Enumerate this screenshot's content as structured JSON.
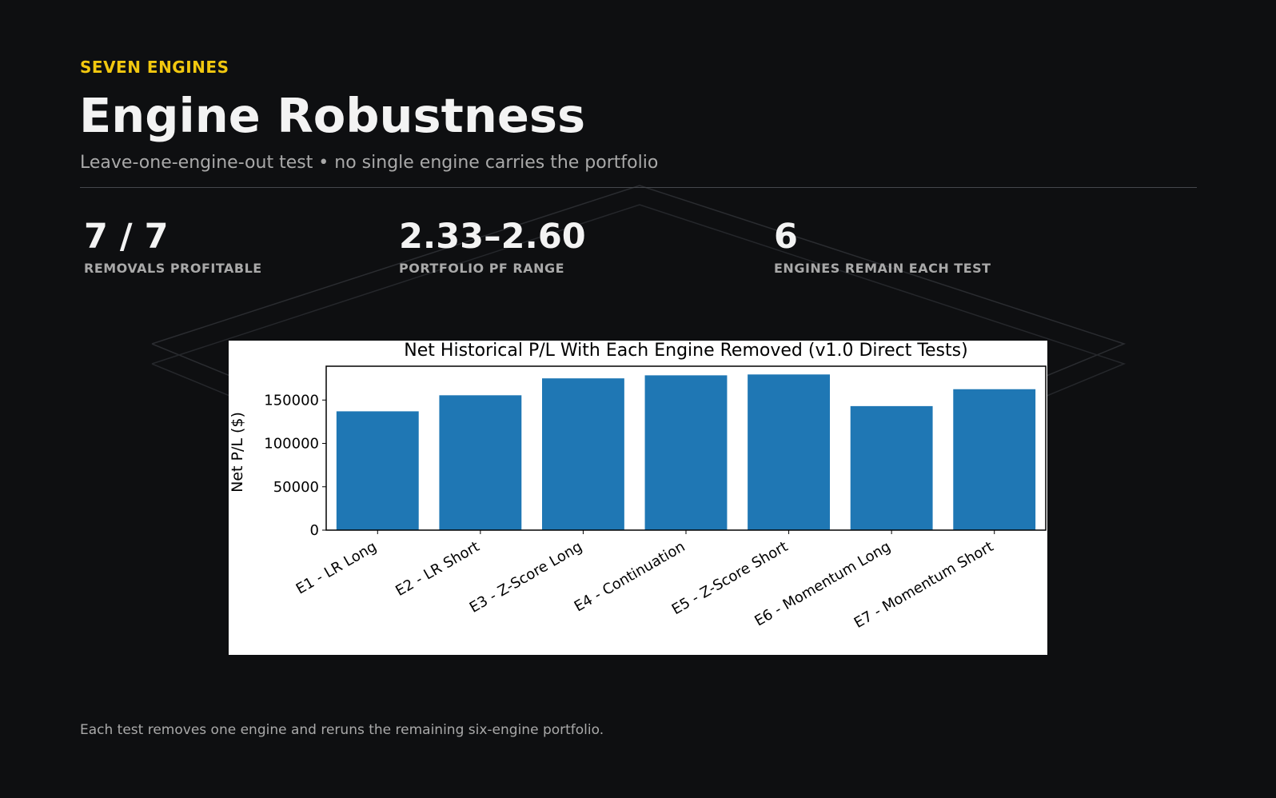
{
  "header": {
    "eyebrow": "SEVEN ENGINES",
    "title": "Engine Robustness",
    "subtitle": "Leave-one-engine-out test • no single engine carries the portfolio"
  },
  "stats": [
    {
      "value": "7 / 7",
      "label": "REMOVALS PROFITABLE"
    },
    {
      "value": "2.33–2.60",
      "label": "PORTFOLIO PF RANGE"
    },
    {
      "value": "6",
      "label": "ENGINES REMAIN EACH TEST"
    }
  ],
  "footer": "Each test removes one engine and reruns the remaining six-engine portfolio.",
  "colors": {
    "accent": "#f2c80f",
    "bar": "#1f77b4",
    "background": "#0e0f11"
  },
  "chart_data": {
    "type": "bar",
    "title": "Net Historical P/L With Each Engine Removed (v1.0 Direct Tests)",
    "xlabel": "",
    "ylabel": "Net P/L ($)",
    "categories": [
      "E1 - LR Long",
      "E2 - LR Short",
      "E3 - Z-Score Long",
      "E4 - Continuation",
      "E5 - Z-Score Short",
      "E6 - Momentum Long",
      "E7 - Momentum Short"
    ],
    "values": [
      137000,
      155500,
      175000,
      178500,
      179500,
      143000,
      162500
    ],
    "yticks": [
      0,
      50000,
      100000,
      150000
    ],
    "ylim": [
      0,
      189000
    ],
    "grid": false
  }
}
